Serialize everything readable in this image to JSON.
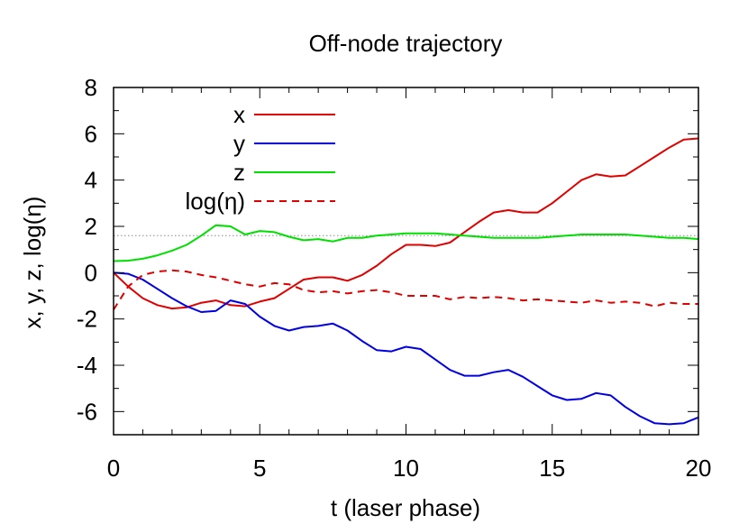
{
  "chart_data": {
    "type": "line",
    "title": "Off-node trajectory",
    "xlabel": "t (laser phase)",
    "ylabel": "x, y, z, log(η)",
    "xlim": [
      0,
      20
    ],
    "ylim": [
      -7,
      8
    ],
    "x_ticks": [
      0,
      5,
      10,
      15,
      20
    ],
    "y_ticks": [
      -6,
      -4,
      -2,
      0,
      2,
      4,
      6,
      8
    ],
    "x_minor_step": 1,
    "y_minor_step": 1,
    "grid": false,
    "legend_position": "top-left",
    "reference_line": {
      "y": 1.6,
      "style": "dotted",
      "color": "#888888"
    },
    "series": [
      {
        "name": "x",
        "color": "#e00000",
        "style": "solid",
        "x": [
          0,
          0.5,
          1,
          1.5,
          2,
          2.5,
          3,
          3.5,
          4,
          4.5,
          5,
          5.5,
          6,
          6.5,
          7,
          7.5,
          8,
          8.5,
          9,
          9.5,
          10,
          10.5,
          11,
          11.5,
          12,
          12.5,
          13,
          13.5,
          14,
          14.5,
          15,
          15.5,
          16,
          16.5,
          17,
          17.5,
          18,
          18.5,
          19,
          19.5,
          20
        ],
        "values": [
          0.0,
          -0.6,
          -1.1,
          -1.4,
          -1.55,
          -1.5,
          -1.3,
          -1.2,
          -1.4,
          -1.45,
          -1.25,
          -1.1,
          -0.7,
          -0.3,
          -0.2,
          -0.2,
          -0.35,
          -0.1,
          0.3,
          0.8,
          1.2,
          1.2,
          1.15,
          1.3,
          1.75,
          2.2,
          2.6,
          2.7,
          2.6,
          2.6,
          3.0,
          3.5,
          4.0,
          4.25,
          4.15,
          4.2,
          4.6,
          5.0,
          5.4,
          5.75,
          5.8
        ]
      },
      {
        "name": "y",
        "color": "#0000e0",
        "style": "solid",
        "x": [
          0,
          0.5,
          1,
          1.5,
          2,
          2.5,
          3,
          3.5,
          4,
          4.5,
          5,
          5.5,
          6,
          6.5,
          7,
          7.5,
          8,
          8.5,
          9,
          9.5,
          10,
          10.5,
          11,
          11.5,
          12,
          12.5,
          13,
          13.5,
          14,
          14.5,
          15,
          15.5,
          16,
          16.5,
          17,
          17.5,
          18,
          18.5,
          19,
          19.5,
          20
        ],
        "values": [
          0.0,
          -0.05,
          -0.3,
          -0.7,
          -1.1,
          -1.45,
          -1.7,
          -1.65,
          -1.2,
          -1.35,
          -1.9,
          -2.3,
          -2.5,
          -2.35,
          -2.3,
          -2.2,
          -2.5,
          -2.95,
          -3.35,
          -3.4,
          -3.2,
          -3.3,
          -3.75,
          -4.2,
          -4.45,
          -4.45,
          -4.3,
          -4.2,
          -4.5,
          -4.9,
          -5.3,
          -5.5,
          -5.45,
          -5.2,
          -5.3,
          -5.8,
          -6.2,
          -6.5,
          -6.55,
          -6.5,
          -6.25
        ]
      },
      {
        "name": "z",
        "color": "#00e000",
        "style": "solid",
        "x": [
          0,
          0.5,
          1,
          1.5,
          2,
          2.5,
          3,
          3.5,
          4,
          4.5,
          5,
          5.5,
          6,
          6.5,
          7,
          7.5,
          8,
          8.5,
          9,
          9.5,
          10,
          10.5,
          11,
          11.5,
          12,
          12.5,
          13,
          13.5,
          14,
          14.5,
          15,
          15.5,
          16,
          16.5,
          17,
          17.5,
          18,
          18.5,
          19,
          19.5,
          20
        ],
        "values": [
          0.5,
          0.52,
          0.6,
          0.75,
          0.95,
          1.2,
          1.6,
          2.05,
          2.0,
          1.65,
          1.8,
          1.75,
          1.55,
          1.4,
          1.45,
          1.35,
          1.5,
          1.5,
          1.6,
          1.65,
          1.7,
          1.7,
          1.7,
          1.65,
          1.6,
          1.55,
          1.5,
          1.5,
          1.5,
          1.5,
          1.55,
          1.6,
          1.65,
          1.65,
          1.65,
          1.65,
          1.6,
          1.55,
          1.5,
          1.5,
          1.45
        ]
      },
      {
        "name": "log(η)",
        "color": "#e00000",
        "style": "dashed",
        "x": [
          0,
          0.5,
          1,
          1.5,
          2,
          2.5,
          3,
          3.5,
          4,
          4.5,
          5,
          5.5,
          6,
          6.5,
          7,
          7.5,
          8,
          8.5,
          9,
          9.5,
          10,
          10.5,
          11,
          11.5,
          12,
          12.5,
          13,
          13.5,
          14,
          14.5,
          15,
          15.5,
          16,
          16.5,
          17,
          17.5,
          18,
          18.5,
          19,
          19.5,
          20
        ],
        "values": [
          -1.6,
          -0.6,
          -0.1,
          0.05,
          0.1,
          0.05,
          -0.1,
          -0.2,
          -0.35,
          -0.5,
          -0.6,
          -0.45,
          -0.5,
          -0.75,
          -0.85,
          -0.8,
          -0.9,
          -0.8,
          -0.75,
          -0.85,
          -1.0,
          -1.0,
          -1.0,
          -1.15,
          -1.05,
          -1.1,
          -1.05,
          -1.1,
          -1.2,
          -1.15,
          -1.2,
          -1.25,
          -1.3,
          -1.2,
          -1.3,
          -1.25,
          -1.3,
          -1.45,
          -1.3,
          -1.35,
          -1.35
        ]
      }
    ]
  }
}
